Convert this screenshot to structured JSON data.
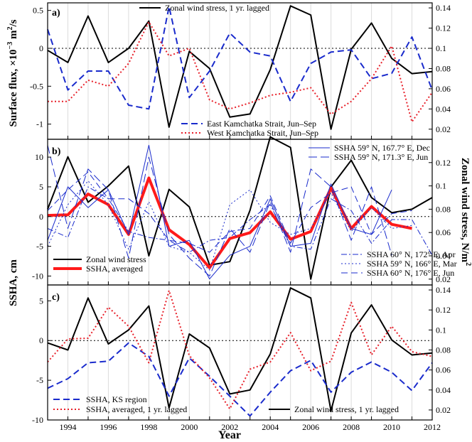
{
  "figure": {
    "xlabel": "Year",
    "left_label_top": "Surface flux, ×10",
    "left_label_top_exp": "−3",
    "left_label_top_unit": " m",
    "left_label_top_unit_exp": "2",
    "left_label_top_tail": "/s",
    "left_label_mid": "SSHA, cm",
    "right_label": "Zonal wind stress, N/m",
    "right_label_exp": "2",
    "x_ticks": [
      "1994",
      "1996",
      "1998",
      "2000",
      "2002",
      "2004",
      "2006",
      "2008",
      "2010",
      "2012"
    ],
    "right_ticks": [
      "0.02",
      "0.04",
      "0.06",
      "0.08",
      "0.1",
      "0.12",
      "0.14"
    ]
  },
  "chart_data": [
    {
      "type": "line",
      "panel_label": "a)",
      "x_range": [
        1993,
        2012
      ],
      "ylim": [
        -1.2,
        0.6
      ],
      "y_ticks": [
        "0.5",
        "0",
        "-0.5",
        "-1"
      ],
      "y2lim": [
        0.01,
        0.145
      ],
      "grid": "vertical",
      "legend_top": "Zonal wind stress, 1 yr. lagged",
      "legend_bottom": [
        "East Kamchatka Strait, Jun–Sep",
        "West Kamchatka Strait, Jun–Sep"
      ],
      "series": [
        {
          "name": "Zonal wind stress, 1 yr. lagged",
          "axis": "right",
          "color": "#000000",
          "style": "solid",
          "width": 2,
          "x": [
            1993,
            1994,
            1995,
            1996,
            1997,
            1998,
            1999,
            2000,
            2001,
            2002,
            2003,
            2004,
            2005,
            2006,
            2007,
            2008,
            2009,
            2010,
            2011,
            2012
          ],
          "values": [
            0.098,
            0.086,
            0.132,
            0.086,
            0.1,
            0.127,
            0.022,
            0.097,
            0.08,
            0.032,
            0.035,
            0.079,
            0.142,
            0.133,
            0.02,
            0.099,
            0.125,
            0.09,
            0.075,
            0.077
          ]
        },
        {
          "name": "East Kamchatka Strait, Jun–Sep",
          "axis": "left",
          "color": "#1a2bcc",
          "style": "dash",
          "width": 2,
          "x": [
            1993,
            1994,
            1995,
            1996,
            1997,
            1998,
            1999,
            2000,
            2001,
            2002,
            2003,
            2004,
            2005,
            2006,
            2007,
            2008,
            2009,
            2010,
            2011,
            2012
          ],
          "values": [
            0.25,
            -0.55,
            -0.3,
            -0.3,
            -0.75,
            -0.8,
            0.55,
            -0.65,
            -0.3,
            0.2,
            -0.05,
            -0.1,
            -0.7,
            -0.2,
            -0.05,
            -0.02,
            -0.4,
            -0.33,
            0.15,
            -0.55
          ]
        },
        {
          "name": "West Kamchatka Strait, Jun–Sep",
          "axis": "left",
          "color": "#e8202a",
          "style": "dot",
          "width": 2,
          "x": [
            1993,
            1994,
            1995,
            1996,
            1997,
            1998,
            1999,
            2000,
            2001,
            2002,
            2003,
            2004,
            2005,
            2006,
            2007,
            2008,
            2009,
            2010,
            2011,
            2012
          ],
          "values": [
            -0.7,
            -0.7,
            -0.42,
            -0.5,
            -0.2,
            0.35,
            -0.1,
            0.0,
            -0.68,
            -0.8,
            -0.72,
            -0.62,
            -0.58,
            -0.52,
            -0.87,
            -0.7,
            -0.4,
            0.03,
            -0.97,
            -0.58
          ]
        }
      ]
    },
    {
      "type": "line",
      "panel_label": "b)",
      "x_range": [
        1993,
        2012
      ],
      "ylim": [
        -11.5,
        13
      ],
      "y_ticks": [
        "10",
        "5",
        "0",
        "-5",
        "-10"
      ],
      "y2lim": [
        0.015,
        0.14
      ],
      "grid": "vertical",
      "legend_top": [
        "SSHA 59° N, 167.7° E, Dec",
        "SSHA 59° N, 171.3° E, Jun"
      ],
      "legend_left": [
        "Zonal wind stress",
        "SSHA, averaged"
      ],
      "legend_right": [
        "SSHA 60° N, 172° E, Apr",
        "SSHA 59° N, 166° E, Mar",
        "SSHA 60° N, 176° E, Jun"
      ],
      "series": [
        {
          "name": "Zonal wind stress",
          "axis": "right",
          "color": "#000000",
          "style": "solid",
          "width": 2,
          "x": [
            1993,
            1994,
            1995,
            1996,
            1997,
            1998,
            1999,
            2000,
            2001,
            2002,
            2003,
            2004,
            2005,
            2006,
            2007,
            2008,
            2009,
            2010,
            2011,
            2012
          ],
          "values": [
            0.08,
            0.125,
            0.086,
            0.1,
            0.117,
            0.04,
            0.097,
            0.082,
            0.032,
            0.035,
            0.079,
            0.142,
            0.133,
            0.02,
            0.099,
            0.122,
            0.09,
            0.077,
            0.08,
            0.09
          ]
        },
        {
          "name": "SSHA, averaged",
          "axis": "left",
          "color": "#ff1a1a",
          "style": "solid",
          "width": 4,
          "x": [
            1993,
            1994,
            1995,
            1996,
            1997,
            1998,
            1999,
            2000,
            2001,
            2002,
            2003,
            2004,
            2005,
            2006,
            2007,
            2008,
            2009,
            2010,
            2011
          ],
          "values": [
            0.2,
            0.3,
            3.8,
            2.0,
            -3.0,
            6.5,
            -2.2,
            -4.7,
            -8.6,
            -3.7,
            -2.7,
            0.8,
            -3.8,
            -2.5,
            4.8,
            -2.0,
            1.7,
            -1.3,
            -2.0
          ]
        },
        {
          "name": "SSHA 59° N, 167.7° E, Dec",
          "axis": "left",
          "color": "#1a2bcc",
          "style": "solid",
          "width": 1,
          "x": [
            1993,
            1994,
            1995,
            1996,
            1997,
            1998,
            1999,
            2000,
            2001,
            2002,
            2003,
            2004,
            2005,
            2006,
            2007,
            2008,
            2009,
            2010
          ],
          "values": [
            -4.0,
            5.0,
            1.5,
            4.5,
            -3.0,
            12.0,
            -5.0,
            -4.0,
            -10.5,
            -6.5,
            -5.0,
            3.0,
            -5.0,
            -4.5,
            5.5,
            -2.0,
            -3.0,
            4.5
          ]
        },
        {
          "name": "SSHA 59° N, 171.3° E, Jun",
          "axis": "left",
          "color": "#1a2bcc",
          "style": "longdash",
          "width": 1,
          "x": [
            1993,
            1994,
            1995,
            1996,
            1997,
            1998,
            1999,
            2000,
            2001,
            2002,
            2003,
            2004,
            2005,
            2006,
            2007,
            2008,
            2009,
            2010
          ],
          "values": [
            12.0,
            -2.0,
            8.0,
            4.5,
            -7.0,
            10.0,
            -3.0,
            -7.0,
            -10.0,
            -2.0,
            -6.0,
            2.5,
            -6.0,
            8.0,
            5.0,
            -4.0,
            5.0,
            -6.5
          ]
        },
        {
          "name": "SSHA 60° N, 172° E, Apr",
          "axis": "left",
          "color": "#1a2bcc",
          "style": "dashdot",
          "width": 1,
          "x": [
            1993,
            1994,
            1995,
            1996,
            1997,
            1998,
            1999,
            2000,
            2001,
            2002,
            2003,
            2004,
            2005,
            2006,
            2007,
            2008,
            2009,
            2010,
            2011,
            2012
          ],
          "values": [
            -2.0,
            -3.5,
            5.0,
            3.0,
            -2.5,
            -3.5,
            -4.0,
            -6.0,
            -4.0,
            -3.5,
            -0.5,
            2.0,
            -5.0,
            -5.5,
            3.0,
            1.0,
            -4.5,
            -0.5,
            -0.5,
            -6.5
          ]
        },
        {
          "name": "SSHA 59° N, 166° E, Mar",
          "axis": "left",
          "color": "#1a2bcc",
          "style": "dot",
          "width": 1,
          "x": [
            1993,
            1994,
            1995,
            1996,
            1997,
            1998,
            1999,
            2000,
            2001,
            2002,
            2003,
            2004,
            2005,
            2006,
            2007,
            2008,
            2009,
            2010,
            2011
          ],
          "values": [
            -5.0,
            2.0,
            6.0,
            2.0,
            -5.5,
            2.5,
            -5.0,
            -6.0,
            -9.0,
            2.0,
            4.5,
            -1.0,
            -3.0,
            -2.0,
            4.0,
            -2.5,
            1.5,
            -2.0,
            -1.5
          ]
        },
        {
          "name": "SSHA 60° N, 176° E, Jun",
          "axis": "left",
          "color": "#1a2bcc",
          "style": "dash",
          "width": 1,
          "x": [
            1993,
            1994,
            1995,
            1996,
            1997,
            1998,
            1999,
            2000,
            2001,
            2002,
            2003,
            2004,
            2005,
            2006,
            2007,
            2008,
            2009,
            2010,
            2011
          ],
          "values": [
            1.0,
            4.5,
            7.5,
            3.0,
            3.0,
            0.5,
            -4.0,
            -4.5,
            -6.0,
            -2.5,
            -2.0,
            3.5,
            -4.5,
            1.5,
            4.0,
            5.0,
            -3.0,
            0.5,
            1.0
          ]
        }
      ]
    },
    {
      "type": "line",
      "panel_label": "c)",
      "x_range": [
        1993,
        2012
      ],
      "ylim": [
        -10,
        7
      ],
      "y_ticks": [
        "5",
        "0",
        "-5",
        "-10"
      ],
      "y2lim": [
        0.01,
        0.145
      ],
      "grid": "vertical",
      "legend_left": [
        "SSHA, KS region",
        "SSHA, averaged, 1 yr. lagged"
      ],
      "legend_right": "Zonal wind stress, 1 yr. lagged",
      "series": [
        {
          "name": "Zonal wind stress, 1 yr. lagged",
          "axis": "right",
          "color": "#000000",
          "style": "solid",
          "width": 2,
          "x": [
            1993,
            1994,
            1995,
            1996,
            1997,
            1998,
            1999,
            2000,
            2001,
            2002,
            2003,
            2004,
            2005,
            2006,
            2007,
            2008,
            2009,
            2010,
            2011,
            2012
          ],
          "values": [
            0.087,
            0.08,
            0.132,
            0.086,
            0.1,
            0.124,
            0.022,
            0.096,
            0.082,
            0.036,
            0.04,
            0.076,
            0.142,
            0.132,
            0.019,
            0.097,
            0.125,
            0.09,
            0.075,
            0.077
          ]
        },
        {
          "name": "SSHA, KS region",
          "axis": "left",
          "color": "#1a2bcc",
          "style": "dash",
          "width": 2,
          "x": [
            1993,
            1994,
            1995,
            1996,
            1997,
            1998,
            1999,
            2000,
            2001,
            2002,
            2003,
            2004,
            2005,
            2006,
            2007,
            2008,
            2009,
            2010,
            2011,
            2012
          ],
          "values": [
            -6.0,
            -4.8,
            -2.8,
            -2.6,
            -0.3,
            -2.0,
            -7.0,
            -2.2,
            -4.5,
            -7.0,
            -9.5,
            -6.5,
            -3.8,
            -2.5,
            -6.5,
            -4.0,
            -2.7,
            -4.0,
            -6.3,
            -2.8
          ]
        },
        {
          "name": "SSHA, averaged, 1 yr. lagged",
          "axis": "left",
          "color": "#e8202a",
          "style": "dot",
          "width": 2,
          "x": [
            1993,
            1994,
            1995,
            1996,
            1997,
            1998,
            1999,
            2000,
            2001,
            2002,
            2003,
            2004,
            2005,
            2006,
            2007,
            2008,
            2009,
            2010,
            2011,
            2012
          ],
          "values": [
            -2.7,
            0.2,
            0.3,
            4.2,
            1.8,
            -2.8,
            6.3,
            -1.9,
            -4.7,
            -8.6,
            -3.6,
            -2.7,
            1.0,
            -3.8,
            -2.6,
            4.8,
            -1.8,
            1.8,
            -1.4,
            -2.0
          ]
        }
      ]
    }
  ]
}
